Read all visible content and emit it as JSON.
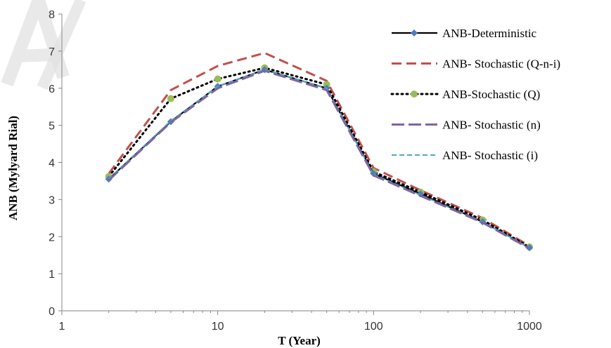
{
  "chart_data": {
    "type": "line",
    "title": "",
    "xlabel": "T (Year)",
    "ylabel": "ANB (Mylyard Rial)",
    "xscale": "log",
    "xlim": [
      1,
      1000
    ],
    "ylim": [
      0,
      8
    ],
    "x_ticks": [
      "1",
      "10",
      "100",
      "1000"
    ],
    "y_ticks": [
      "0",
      "1",
      "2",
      "3",
      "4",
      "5",
      "6",
      "7",
      "8"
    ],
    "grid": false,
    "legend_position": "right",
    "x": [
      2,
      5,
      10,
      20,
      50,
      100,
      200,
      500,
      1000
    ],
    "series": [
      {
        "name": "ANB-Deterministic",
        "values": [
          3.55,
          5.1,
          6.05,
          6.5,
          6.0,
          3.7,
          3.15,
          2.4,
          1.7
        ],
        "color": "#000000",
        "line": "solid",
        "marker": "diamond",
        "marker_color": "#4a7ebb"
      },
      {
        "name": "ANB- Stochastic (Q-n-i)",
        "values": [
          3.7,
          5.95,
          6.6,
          6.95,
          6.2,
          3.85,
          3.25,
          2.5,
          1.75
        ],
        "color": "#c0504d",
        "line": "dash",
        "marker": "none"
      },
      {
        "name": "ANB-Stochastic (Q)",
        "values": [
          3.62,
          5.72,
          6.25,
          6.55,
          6.1,
          3.75,
          3.2,
          2.45,
          1.72
        ],
        "color": "#000000",
        "line": "dot",
        "marker": "circle",
        "marker_color": "#9bbb59"
      },
      {
        "name": "ANB- Stochastic (n)",
        "values": [
          3.52,
          5.08,
          6.0,
          6.47,
          5.95,
          3.65,
          3.1,
          2.38,
          1.68
        ],
        "color": "#8064a2",
        "line": "longdash",
        "marker": "none"
      },
      {
        "name": "ANB- Stochastic (i)",
        "values": [
          3.56,
          5.12,
          6.05,
          6.5,
          6.0,
          3.68,
          3.12,
          2.4,
          1.7
        ],
        "color": "#4bacc6",
        "line": "shortdash",
        "marker": "star"
      }
    ]
  }
}
